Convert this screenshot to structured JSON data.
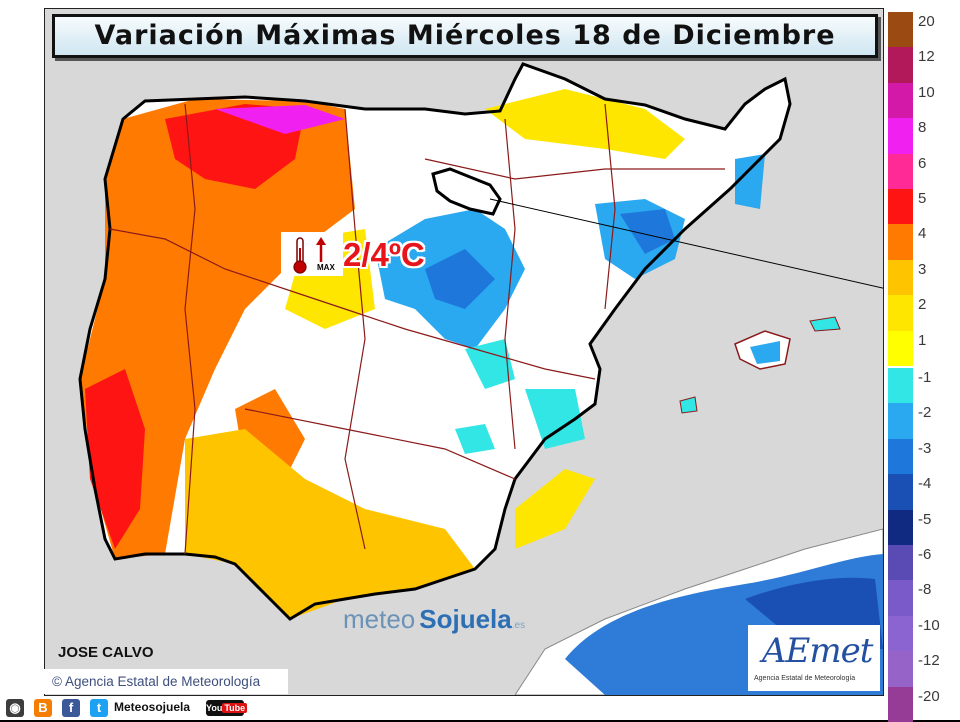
{
  "title": "Variación Máximas Miércoles 18 de Diciembre",
  "badge": {
    "icon": "thermometer-max-icon",
    "icon_text": "MAX",
    "value": "2/4ºC",
    "arrow": "up"
  },
  "watermark": {
    "part1": "meteo",
    "part2": "Sojuela",
    "part3": ".es"
  },
  "author": "JOSE CALVO",
  "copyright": "© Agencia Estatal de Meteorología",
  "logo": {
    "name": "AEMet",
    "word": "AEmet",
    "subtitle": "Agencia Estatal de Meteorología"
  },
  "social": {
    "handle": "Meteosojuela",
    "youtube": "YouTube",
    "icons": [
      "instagram-icon",
      "blogger-icon",
      "facebook-icon",
      "twitter-icon",
      "youtube-icon"
    ]
  },
  "colors": {
    "sea": "#d8d8d8",
    "land_no_change": "#ffffff",
    "coast": "#000000",
    "boundaries": "#8b1a1a"
  },
  "legend": {
    "items": [
      {
        "label": "20",
        "color": "#9b4a12"
      },
      {
        "label": "12",
        "color": "#b2195b"
      },
      {
        "label": "10",
        "color": "#d219a8"
      },
      {
        "label": "8",
        "color": "#f020f0"
      },
      {
        "label": "6",
        "color": "#ff2a96"
      },
      {
        "label": "5",
        "color": "#ff1414"
      },
      {
        "label": "4",
        "color": "#ff7a00"
      },
      {
        "label": "3",
        "color": "#ffc400"
      },
      {
        "label": "2",
        "color": "#ffe600"
      },
      {
        "label": "1",
        "color": "#ffff00"
      },
      {
        "label": "-1",
        "color": "#32e6e6"
      },
      {
        "label": "-2",
        "color": "#2aa8f0"
      },
      {
        "label": "-3",
        "color": "#1e78dc"
      },
      {
        "label": "-4",
        "color": "#1a50b4"
      },
      {
        "label": "-5",
        "color": "#102a82"
      },
      {
        "label": "-6",
        "color": "#5a4ab4"
      },
      {
        "label": "-8",
        "color": "#7a5ac8"
      },
      {
        "label": "-10",
        "color": "#8c64d2"
      },
      {
        "label": "-12",
        "color": "#9664c8"
      },
      {
        "label": "-20",
        "color": "#963c96"
      }
    ]
  }
}
